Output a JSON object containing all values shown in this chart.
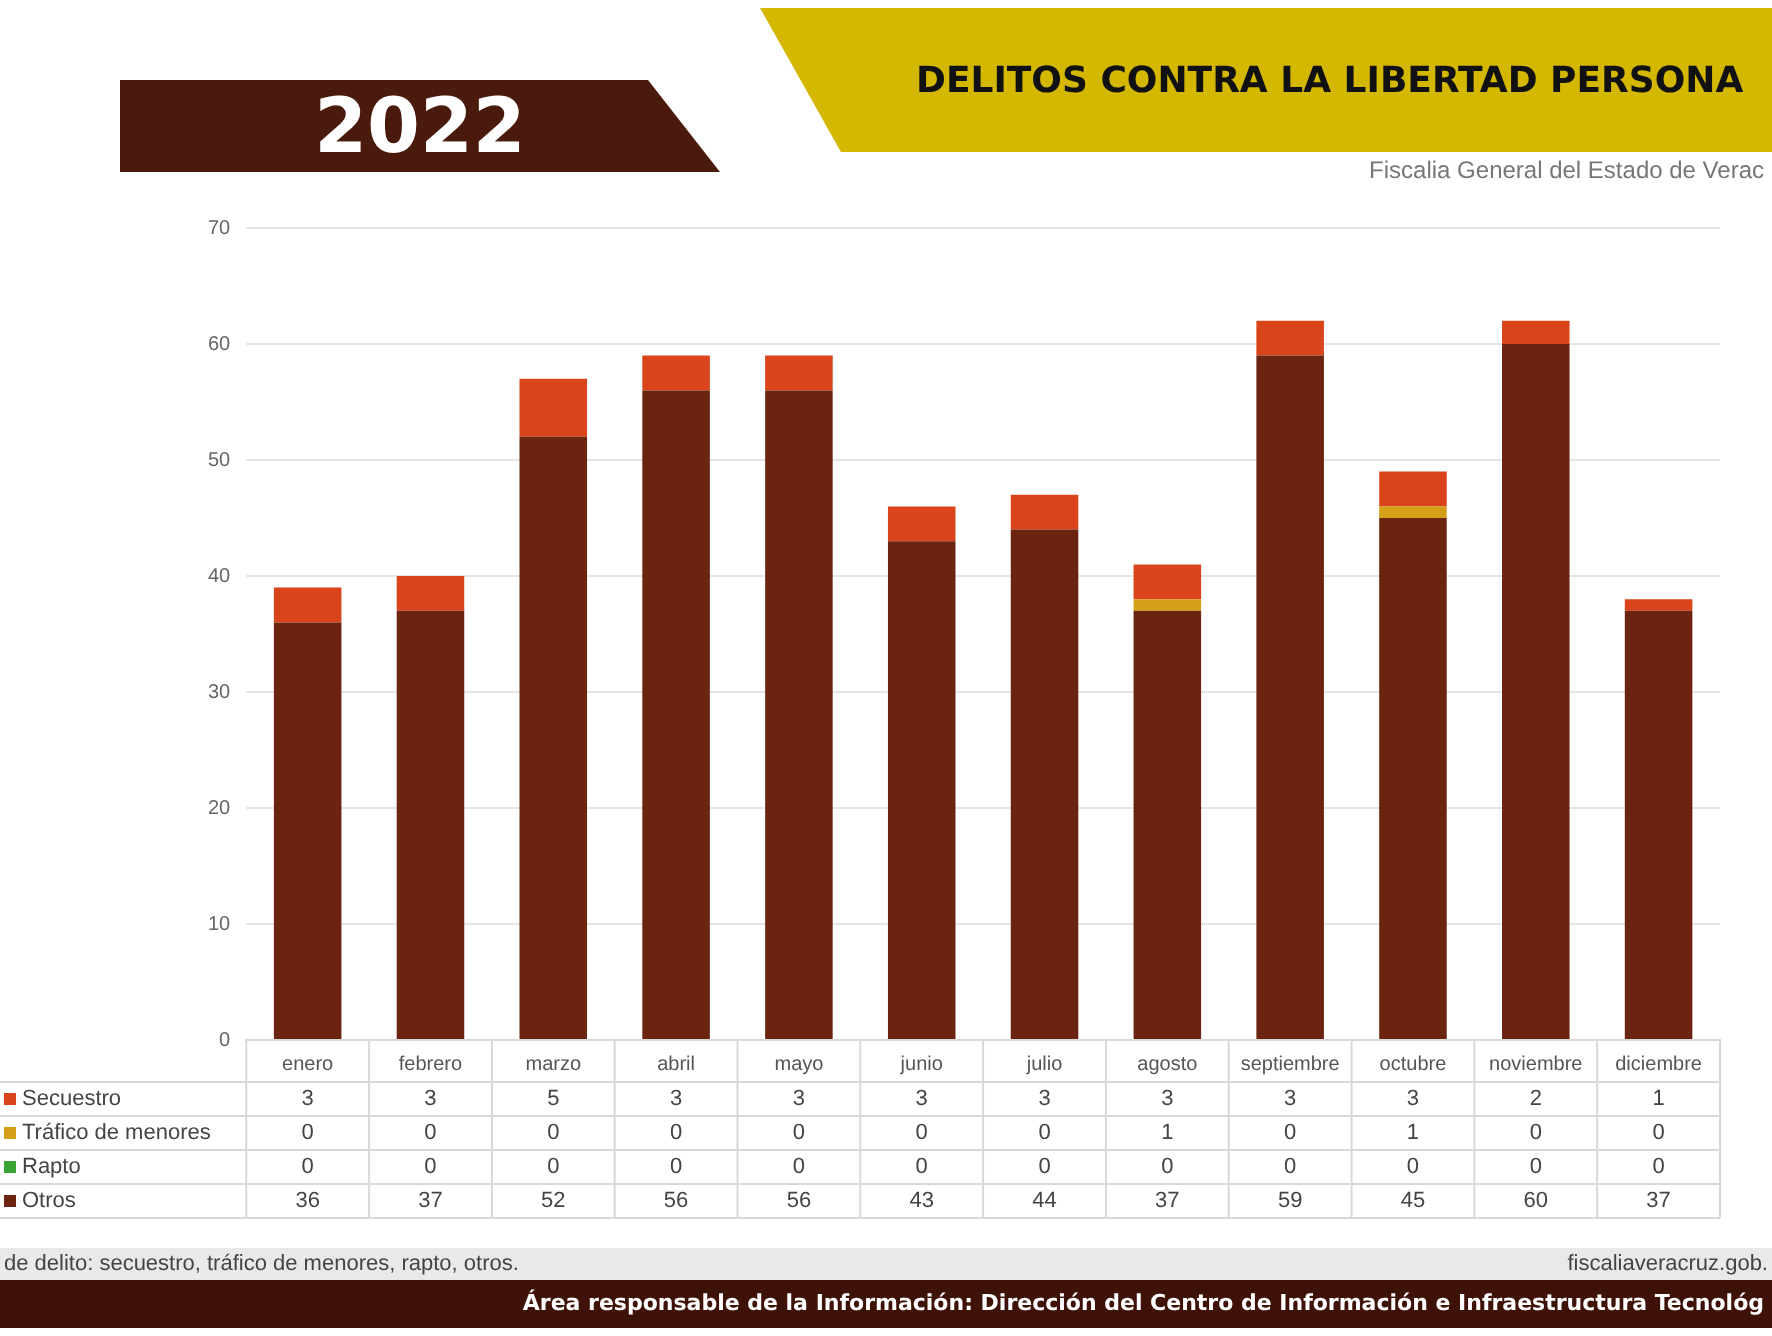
{
  "chart_data": {
    "type": "bar",
    "title": "DELITOS CONTRA LA LIBERTAD PERSONA",
    "subtitle": "Fiscalia General del Estado de Verac",
    "categories": [
      "enero",
      "febrero",
      "marzo",
      "abril",
      "mayo",
      "junio",
      "julio",
      "agosto",
      "septiembre",
      "octubre",
      "noviembre",
      "diciembre"
    ],
    "series": [
      {
        "name": "Otros",
        "color": "#6b2410",
        "values": [
          36,
          37,
          52,
          56,
          56,
          43,
          44,
          37,
          59,
          45,
          60,
          37
        ]
      },
      {
        "name": "Rapto",
        "color": "#3aa335",
        "values": [
          0,
          0,
          0,
          0,
          0,
          0,
          0,
          0,
          0,
          0,
          0,
          0
        ]
      },
      {
        "name": "Tráfico de menores",
        "color": "#d4a017",
        "values": [
          0,
          0,
          0,
          0,
          0,
          0,
          0,
          1,
          0,
          1,
          0,
          0
        ]
      },
      {
        "name": "Secuestro",
        "color": "#d9441a",
        "values": [
          3,
          3,
          5,
          3,
          3,
          3,
          3,
          3,
          3,
          3,
          2,
          1
        ]
      }
    ],
    "stacked": true,
    "ylim": [
      0,
      70
    ],
    "yticks": [
      0,
      10,
      20,
      30,
      40,
      50,
      60,
      70
    ],
    "grid": "y",
    "legend": "bottom",
    "data_labels": true,
    "annotations": [
      "2022",
      "de delito: secuestro, tráfico de menores, rapto, otros.",
      "fiscaliaveracruz.gob.",
      "Área responsable de la Información: Dirección del Centro de Información e Infraestructura Tecnológ"
    ]
  }
}
